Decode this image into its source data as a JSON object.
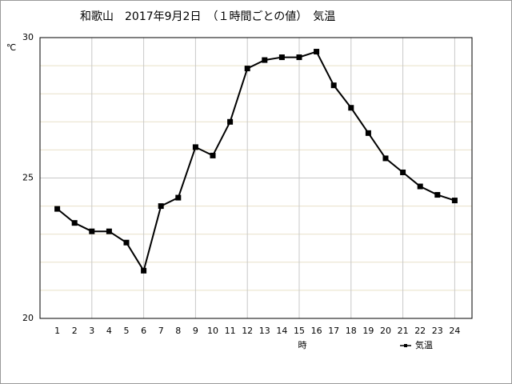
{
  "chart_data": {
    "type": "line",
    "title": "和歌山　2017年9月2日　（１時間ごとの値）　気温",
    "y_label": "℃",
    "x_label": "時",
    "x": [
      1,
      2,
      3,
      4,
      5,
      6,
      7,
      8,
      9,
      10,
      11,
      12,
      13,
      14,
      15,
      16,
      17,
      18,
      19,
      20,
      21,
      22,
      23,
      24
    ],
    "series": [
      {
        "name": "気温",
        "color": "#000000",
        "values": [
          23.9,
          23.4,
          23.1,
          23.1,
          22.7,
          21.7,
          24.0,
          24.3,
          26.1,
          25.8,
          27.0,
          28.9,
          29.2,
          29.3,
          29.3,
          29.5,
          28.3,
          27.5,
          26.6,
          25.7,
          25.2,
          24.7,
          24.4,
          24.2
        ]
      }
    ],
    "xlim": [
      0,
      25
    ],
    "xticks": [
      1,
      2,
      3,
      4,
      5,
      6,
      7,
      8,
      9,
      10,
      11,
      12,
      13,
      14,
      15,
      16,
      17,
      18,
      19,
      20,
      21,
      22,
      23,
      24
    ],
    "xgrid": [
      3,
      6,
      9,
      12,
      15,
      18,
      21,
      24
    ],
    "ylim": [
      20,
      30
    ],
    "yticks": [
      20,
      25,
      30
    ],
    "minor_yticks": [
      21,
      22,
      23,
      24,
      26,
      27,
      28,
      29
    ],
    "grid": true,
    "legend": "lower right"
  }
}
